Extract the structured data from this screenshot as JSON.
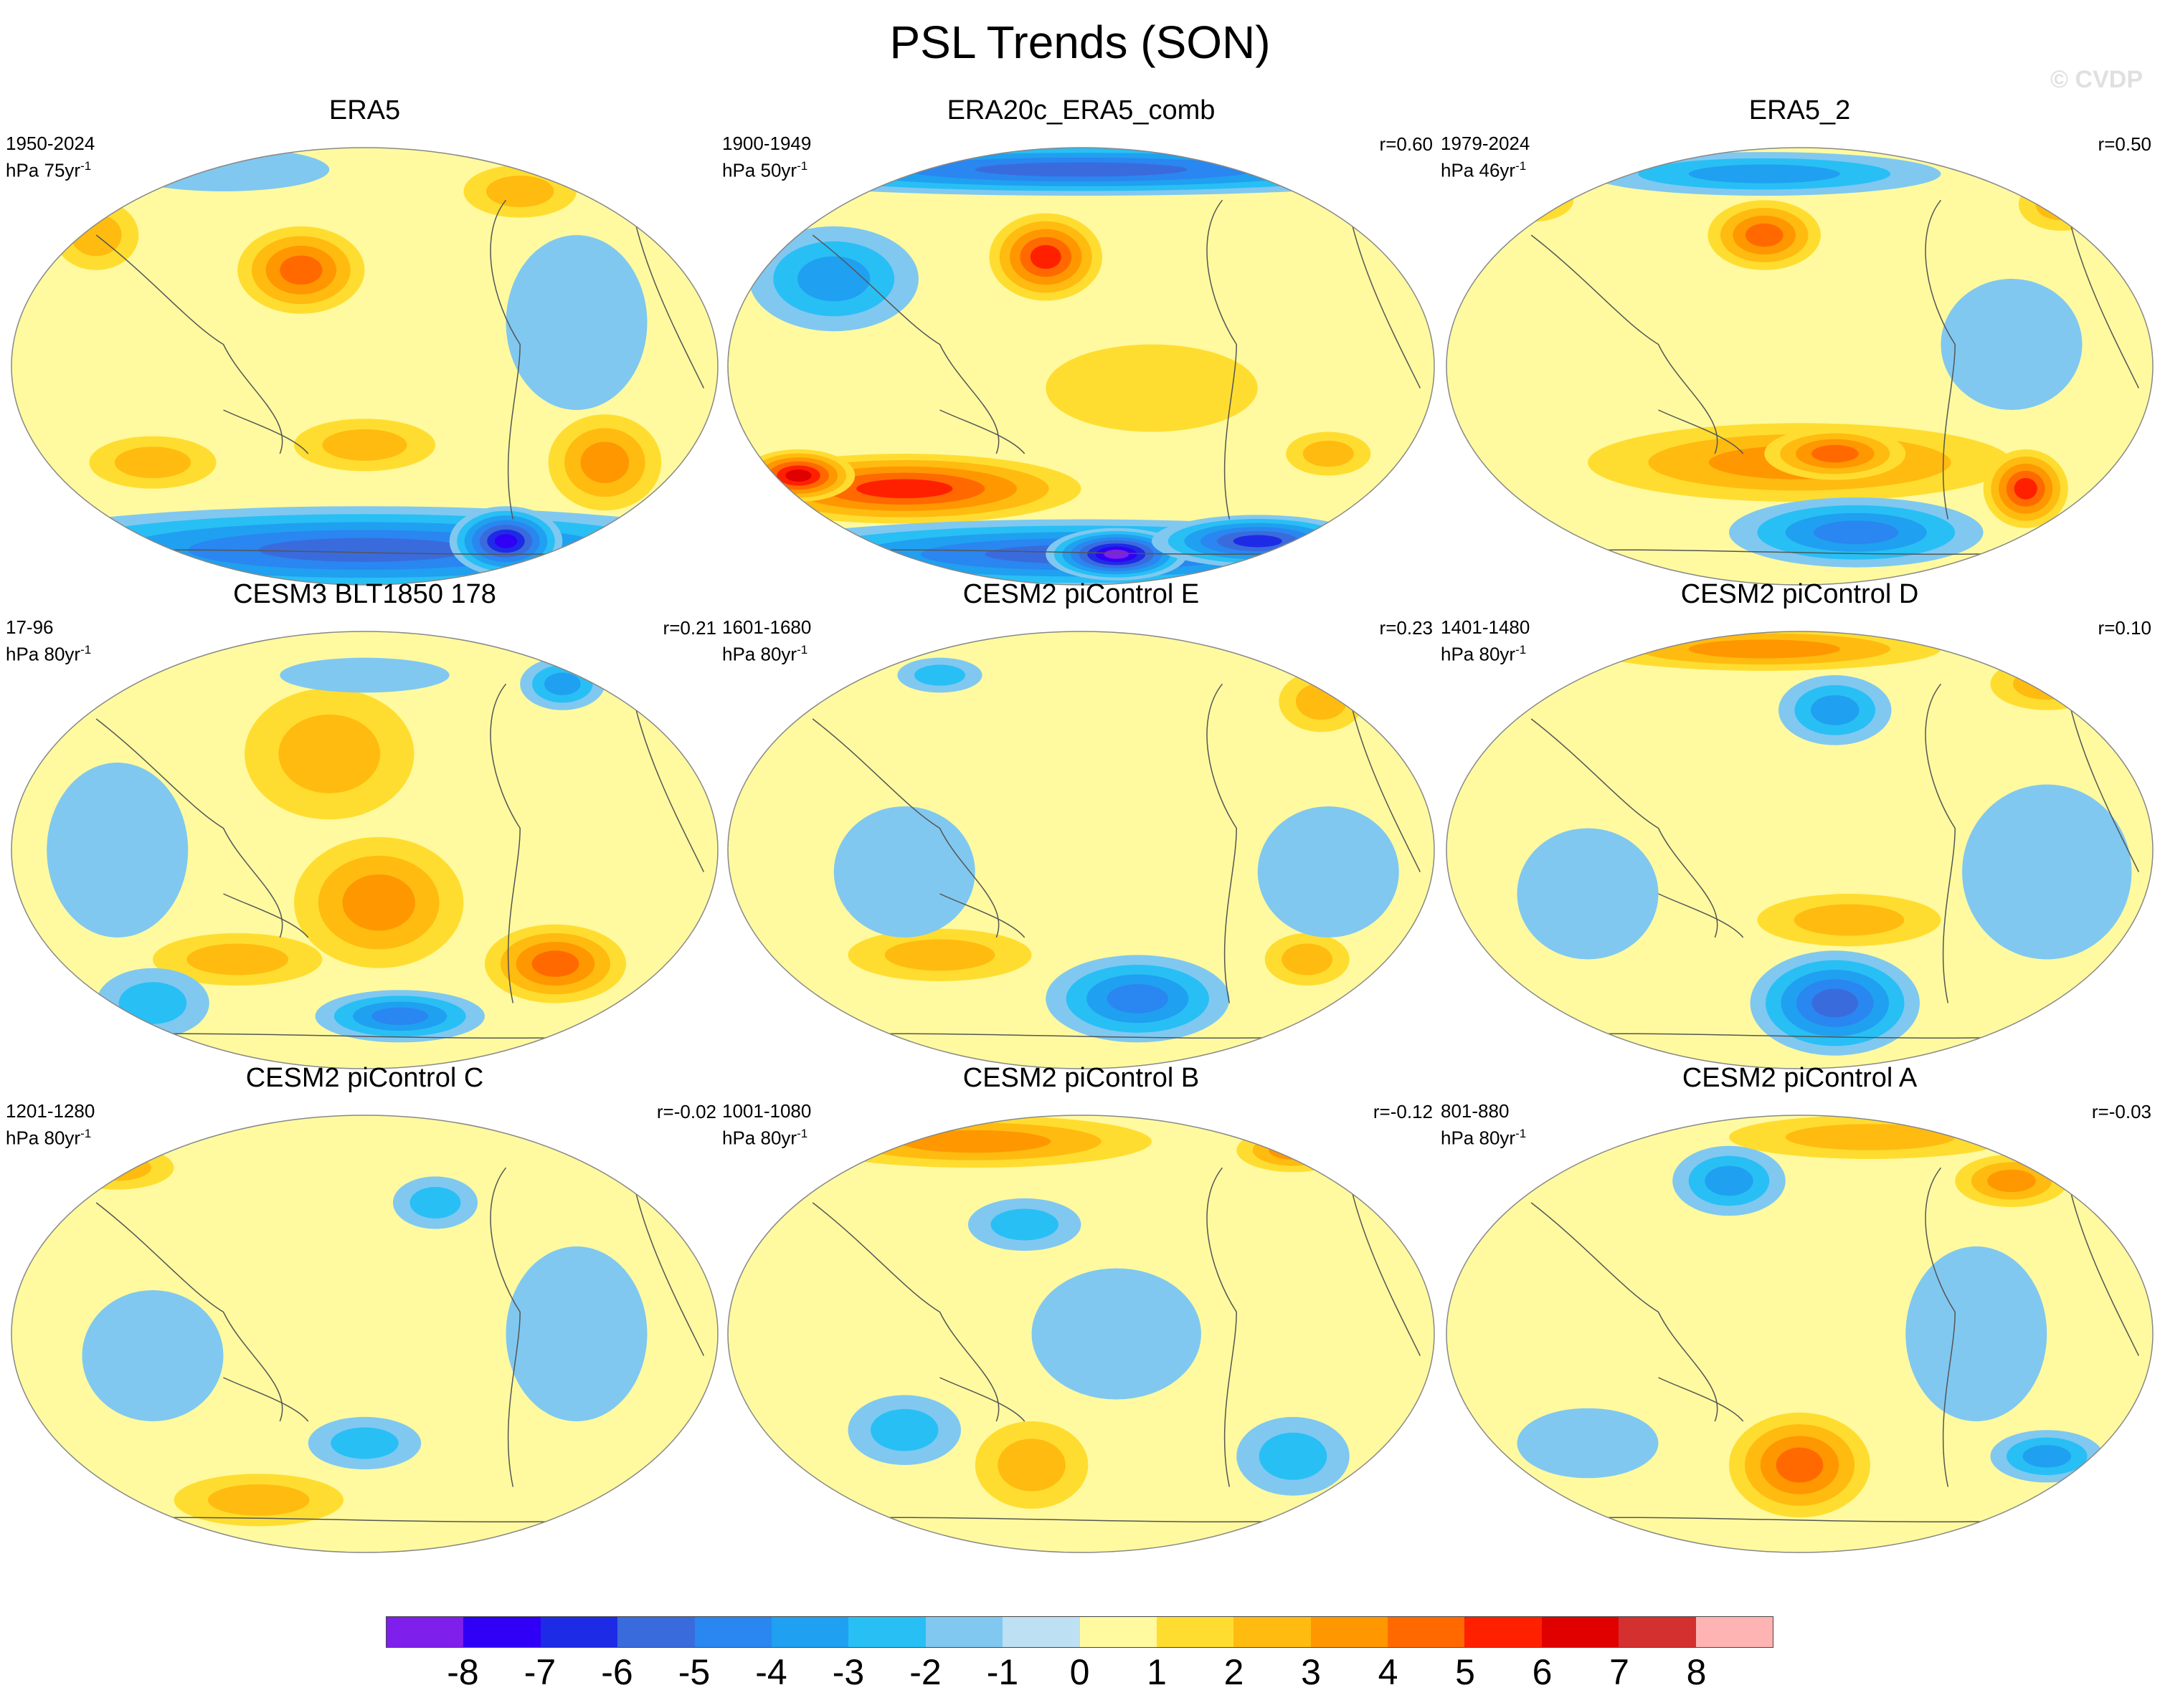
{
  "title": "PSL Trends (SON)",
  "watermark": "© CVDP",
  "panels": [
    {
      "title": "ERA5",
      "years": "1950-2024",
      "units": "hPa 75yr",
      "unit_exp": "-1",
      "corr": "",
      "blobs": [
        [
          0.41,
          0.28,
          0.09,
          0.1,
          4
        ],
        [
          0.12,
          0.2,
          0.06,
          0.08,
          2
        ],
        [
          0.72,
          0.1,
          0.08,
          0.06,
          2
        ],
        [
          0.2,
          0.72,
          0.09,
          0.06,
          2
        ],
        [
          0.5,
          0.68,
          0.1,
          0.06,
          2
        ],
        [
          0.84,
          0.72,
          0.08,
          0.11,
          3
        ],
        [
          0.5,
          0.92,
          0.55,
          0.1,
          -5
        ],
        [
          0.7,
          0.9,
          0.08,
          0.08,
          -7
        ],
        [
          0.3,
          0.05,
          0.15,
          0.05,
          -1
        ],
        [
          0.8,
          0.4,
          0.1,
          0.2,
          -1
        ]
      ]
    },
    {
      "title": "ERA20c_ERA5_comb",
      "years": "1900-1949",
      "units": "hPa 50yr",
      "unit_exp": "-1",
      "corr": "r=0.60",
      "blobs": [
        [
          0.5,
          0.05,
          0.55,
          0.06,
          -5
        ],
        [
          0.15,
          0.3,
          0.12,
          0.12,
          -3
        ],
        [
          0.45,
          0.25,
          0.08,
          0.1,
          5
        ],
        [
          0.25,
          0.78,
          0.25,
          0.08,
          5
        ],
        [
          0.1,
          0.75,
          0.08,
          0.06,
          6
        ],
        [
          0.5,
          0.93,
          0.5,
          0.08,
          -5
        ],
        [
          0.55,
          0.93,
          0.1,
          0.06,
          -8
        ],
        [
          0.75,
          0.9,
          0.15,
          0.06,
          -6
        ],
        [
          0.85,
          0.7,
          0.06,
          0.05,
          2
        ],
        [
          0.6,
          0.55,
          0.15,
          0.1,
          1
        ]
      ]
    },
    {
      "title": "ERA5_2",
      "years": "1979-2024",
      "units": "hPa 46yr",
      "unit_exp": "-1",
      "corr": "r=0.50",
      "blobs": [
        [
          0.45,
          0.2,
          0.08,
          0.08,
          4
        ],
        [
          0.45,
          0.06,
          0.25,
          0.05,
          -3
        ],
        [
          0.5,
          0.72,
          0.3,
          0.09,
          3
        ],
        [
          0.55,
          0.7,
          0.1,
          0.06,
          4
        ],
        [
          0.82,
          0.78,
          0.06,
          0.09,
          5
        ],
        [
          0.58,
          0.88,
          0.18,
          0.08,
          -4
        ],
        [
          0.12,
          0.12,
          0.06,
          0.05,
          2
        ],
        [
          0.87,
          0.13,
          0.06,
          0.06,
          2
        ],
        [
          0.8,
          0.45,
          0.1,
          0.15,
          -1
        ]
      ]
    },
    {
      "title": "CESM3 BLT1850 178",
      "years": "17-96",
      "units": "hPa 80yr",
      "unit_exp": "-1",
      "corr": "r=0.21",
      "blobs": [
        [
          0.45,
          0.28,
          0.12,
          0.15,
          2
        ],
        [
          0.52,
          0.62,
          0.12,
          0.15,
          3
        ],
        [
          0.32,
          0.75,
          0.12,
          0.06,
          2
        ],
        [
          0.77,
          0.76,
          0.1,
          0.09,
          4
        ],
        [
          0.55,
          0.88,
          0.12,
          0.06,
          -4
        ],
        [
          0.2,
          0.85,
          0.08,
          0.08,
          -2
        ],
        [
          0.78,
          0.12,
          0.06,
          0.06,
          -3
        ],
        [
          0.5,
          0.1,
          0.12,
          0.04,
          -1
        ],
        [
          0.15,
          0.5,
          0.1,
          0.2,
          -1
        ]
      ]
    },
    {
      "title": "CESM2 piControl E",
      "years": "1601-1680",
      "units": "hPa 80yr",
      "unit_exp": "-1",
      "corr": "r=0.23",
      "blobs": [
        [
          0.58,
          0.84,
          0.13,
          0.1,
          -4
        ],
        [
          0.3,
          0.74,
          0.13,
          0.06,
          2
        ],
        [
          0.84,
          0.16,
          0.06,
          0.07,
          2
        ],
        [
          0.82,
          0.75,
          0.06,
          0.06,
          2
        ],
        [
          0.3,
          0.1,
          0.06,
          0.04,
          -2
        ],
        [
          0.85,
          0.55,
          0.1,
          0.15,
          -1
        ],
        [
          0.25,
          0.55,
          0.1,
          0.15,
          -1
        ]
      ]
    },
    {
      "title": "CESM2 piControl D",
      "years": "1401-1480",
      "units": "hPa 80yr",
      "unit_exp": "-1",
      "corr": "r=0.10",
      "blobs": [
        [
          0.45,
          0.04,
          0.25,
          0.05,
          3
        ],
        [
          0.85,
          0.12,
          0.08,
          0.06,
          2
        ],
        [
          0.55,
          0.85,
          0.12,
          0.12,
          -5
        ],
        [
          0.57,
          0.66,
          0.13,
          0.06,
          2
        ],
        [
          0.55,
          0.18,
          0.08,
          0.08,
          -3
        ],
        [
          0.85,
          0.55,
          0.12,
          0.2,
          -1
        ],
        [
          0.2,
          0.6,
          0.1,
          0.15,
          -1
        ]
      ]
    },
    {
      "title": "CESM2 piControl C",
      "years": "1201-1280",
      "units": "hPa 80yr",
      "unit_exp": "-1",
      "corr": "r=-0.02",
      "blobs": [
        [
          0.35,
          0.88,
          0.12,
          0.06,
          2
        ],
        [
          0.5,
          0.75,
          0.08,
          0.06,
          -2
        ],
        [
          0.6,
          0.2,
          0.06,
          0.06,
          -2
        ],
        [
          0.2,
          0.55,
          0.1,
          0.15,
          -1
        ],
        [
          0.8,
          0.5,
          0.1,
          0.2,
          -1
        ],
        [
          0.15,
          0.12,
          0.08,
          0.05,
          2
        ]
      ]
    },
    {
      "title": "CESM2 piControl B",
      "years": "1001-1080",
      "units": "hPa 80yr",
      "unit_exp": "-1",
      "corr": "r=-0.12",
      "blobs": [
        [
          0.35,
          0.06,
          0.25,
          0.06,
          3
        ],
        [
          0.8,
          0.08,
          0.08,
          0.05,
          3
        ],
        [
          0.43,
          0.8,
          0.08,
          0.1,
          2
        ],
        [
          0.25,
          0.72,
          0.08,
          0.08,
          -2
        ],
        [
          0.8,
          0.78,
          0.08,
          0.09,
          -2
        ],
        [
          0.42,
          0.25,
          0.08,
          0.06,
          -2
        ],
        [
          0.55,
          0.5,
          0.12,
          0.15,
          -1
        ]
      ]
    },
    {
      "title": "CESM2 piControl A",
      "years": "801-880",
      "units": "hPa 80yr",
      "unit_exp": "-1",
      "corr": "r=-0.03",
      "blobs": [
        [
          0.5,
          0.8,
          0.1,
          0.12,
          4
        ],
        [
          0.8,
          0.15,
          0.08,
          0.06,
          3
        ],
        [
          0.4,
          0.15,
          0.08,
          0.08,
          -3
        ],
        [
          0.85,
          0.78,
          0.08,
          0.06,
          -3
        ],
        [
          0.6,
          0.05,
          0.2,
          0.05,
          2
        ],
        [
          0.2,
          0.75,
          0.1,
          0.08,
          -1
        ],
        [
          0.75,
          0.5,
          0.1,
          0.2,
          -1
        ]
      ]
    }
  ],
  "colorbar": {
    "colors": [
      "#7f1feb",
      "#2f00f5",
      "#1e2be6",
      "#3a6bdc",
      "#2a86f0",
      "#20a0f0",
      "#28bff5",
      "#80c8f0",
      "#bde0f2",
      "#fffaa0",
      "#ffdd30",
      "#ffbb10",
      "#ff9700",
      "#ff6900",
      "#ff2000",
      "#e00000",
      "#d43030",
      "#ffb4b4"
    ],
    "labels": [
      "-8",
      "-7",
      "-6",
      "-5",
      "-4",
      "-3",
      "-2",
      "-1",
      "0",
      "1",
      "2",
      "3",
      "4",
      "5",
      "6",
      "7",
      "8"
    ]
  }
}
